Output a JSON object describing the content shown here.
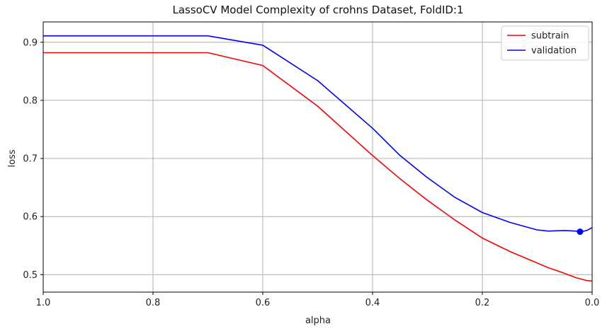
{
  "chart_data": {
    "type": "line",
    "title": "LassoCV Model Complexity of crohns Dataset, FoldID:1",
    "xlabel": "alpha",
    "ylabel": "loss",
    "xlim": [
      1.0,
      0.0
    ],
    "ylim": [
      0.47,
      0.935
    ],
    "x_ticks": [
      1.0,
      0.8,
      0.6,
      0.4,
      0.2,
      0.0
    ],
    "x_tick_labels": [
      "1.0",
      "0.8",
      "0.6",
      "0.4",
      "0.2",
      "0.0"
    ],
    "y_ticks": [
      0.5,
      0.6,
      0.7,
      0.8,
      0.9
    ],
    "y_tick_labels": [
      "0.5",
      "0.6",
      "0.7",
      "0.8",
      "0.9"
    ],
    "grid": true,
    "legend_position": "top-right",
    "series": [
      {
        "name": "subtrain",
        "color": "#ff0000",
        "x": [
          1.0,
          0.7,
          0.6,
          0.5,
          0.4,
          0.35,
          0.3,
          0.25,
          0.2,
          0.15,
          0.1,
          0.08,
          0.055,
          0.03,
          0.01,
          0.0
        ],
        "y": [
          0.882,
          0.882,
          0.86,
          0.79,
          0.705,
          0.665,
          0.628,
          0.594,
          0.563,
          0.54,
          0.52,
          0.512,
          0.504,
          0.495,
          0.49,
          0.489
        ]
      },
      {
        "name": "validation",
        "color": "#0000ff",
        "x": [
          1.0,
          0.7,
          0.6,
          0.5,
          0.4,
          0.35,
          0.3,
          0.25,
          0.2,
          0.15,
          0.1,
          0.08,
          0.05,
          0.03,
          0.02,
          0.01,
          0.0
        ],
        "y": [
          0.911,
          0.911,
          0.895,
          0.834,
          0.752,
          0.705,
          0.667,
          0.633,
          0.607,
          0.59,
          0.577,
          0.575,
          0.576,
          0.575,
          0.574,
          0.576,
          0.581
        ]
      }
    ],
    "marker": {
      "series": "validation",
      "x": 0.022,
      "y": 0.574,
      "color": "#0000ff"
    }
  }
}
